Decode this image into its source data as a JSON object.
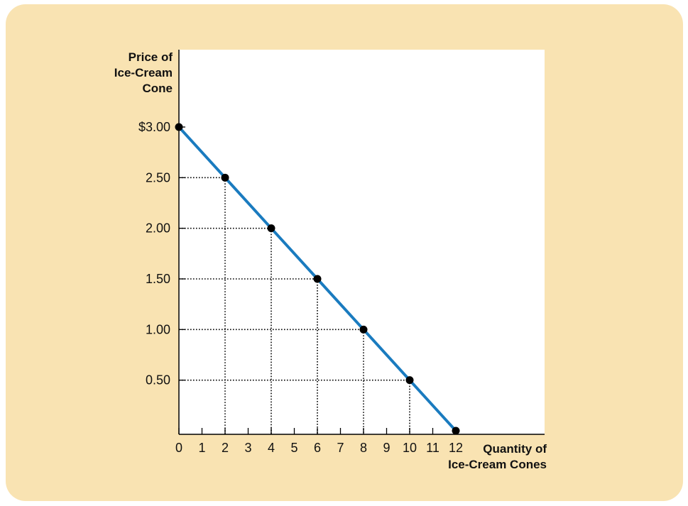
{
  "colors": {
    "panel_bg": "#f9e3b2",
    "plot_bg": "#ffffff",
    "line": "#1a7bbf",
    "points": "#000000",
    "guides": "#000000"
  },
  "chart_data": {
    "type": "line",
    "title": "",
    "ylabel_lines": [
      "Price of",
      "Ice-Cream",
      "Cone"
    ],
    "xlabel_lines": [
      "Quantity of",
      "Ice-Cream Cones"
    ],
    "x_ticks": [
      0,
      1,
      2,
      3,
      4,
      5,
      6,
      7,
      8,
      9,
      10,
      11,
      12
    ],
    "x_tick_labels": [
      "0",
      "1",
      "2",
      "3",
      "4",
      "5",
      "6",
      "7",
      "8",
      "9",
      "10",
      "11",
      "12"
    ],
    "y_ticks": [
      0.5,
      1.0,
      1.5,
      2.0,
      2.5,
      3.0
    ],
    "y_tick_labels": [
      "0.50",
      "1.00",
      "1.50",
      "2.00",
      "2.50",
      "$3.00"
    ],
    "xlim": [
      0,
      16
    ],
    "ylim": [
      0,
      3.5
    ],
    "grid": false,
    "series": [
      {
        "x": [
          0,
          2,
          4,
          6,
          8,
          10,
          12
        ],
        "y": [
          3.0,
          2.5,
          2.0,
          1.5,
          1.0,
          0.5,
          0.0
        ]
      }
    ]
  }
}
